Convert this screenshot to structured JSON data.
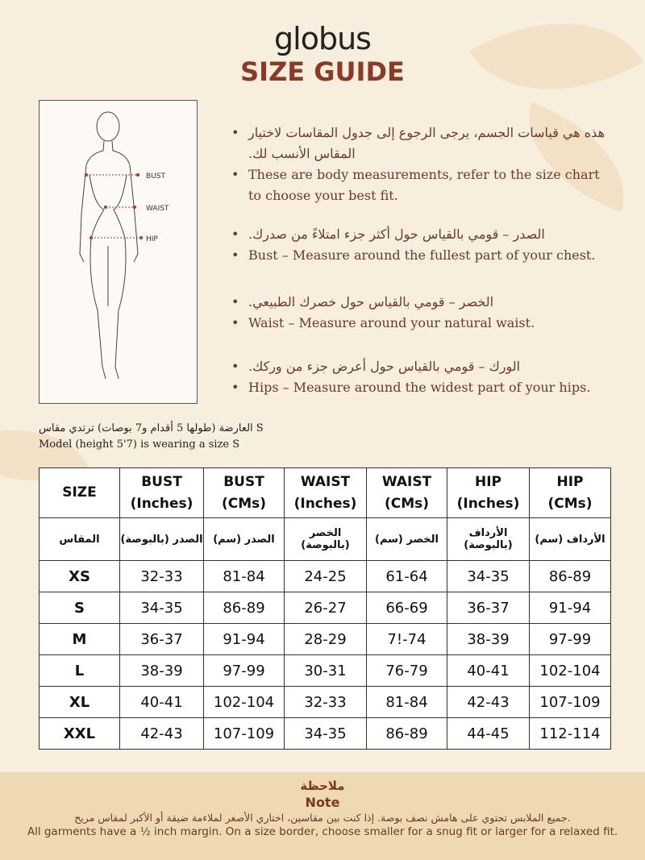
{
  "brand": "globus",
  "title": "SIZE GUIDE",
  "figure": {
    "labels": [
      "BUST",
      "WAIST",
      "HIP"
    ]
  },
  "bullets": [
    {
      "ar": "هذه هي قياسات الجسم، يرجى الرجوع إلى جدول المقاسات لاختيار المقاس الأنسب لك.",
      "en": "These are body measurements, refer to the size chart to choose your best fit."
    },
    {
      "ar": "الصدر – قومي بالقياس حول أكثر جزء امتلاءً من صدرك.",
      "en": "Bust – Measure around the fullest part of your chest."
    },
    {
      "ar": "الخصر – قومي بالقياس حول خصرك الطبيعي.",
      "en": "Waist – Measure around your natural waist."
    },
    {
      "ar": "الورك – قومي بالقياس حول أعرض جزء من وركك.",
      "en": "Hips – Measure around the widest part of your hips."
    }
  ],
  "model": {
    "ar": "العارضة (طولها 5 أقدام و7 بوصات) ترتدي مقاس S",
    "en": "Model (height 5'7) is wearing a size S"
  },
  "table": {
    "headers_en": [
      [
        "SIZE",
        ""
      ],
      [
        "BUST",
        "(Inches)"
      ],
      [
        "BUST",
        "(CMs)"
      ],
      [
        "WAIST",
        "(Inches)"
      ],
      [
        "WAIST",
        "(CMs)"
      ],
      [
        "HIP",
        "(Inches)"
      ],
      [
        "HIP",
        "(CMs)"
      ]
    ],
    "headers_ar": [
      "المقاس",
      "الصدر (بالبوصة)",
      "الصدر (سم)",
      "الخصر (بالبوصة)",
      "الخصر (سم)",
      "الأرداف (بالبوصة)",
      "الأرداف (سم)"
    ],
    "rows": [
      [
        "XS",
        "32-33",
        "81-84",
        "24-25",
        "61-64",
        "34-35",
        "86-89"
      ],
      [
        "S",
        "34-35",
        "86-89",
        "26-27",
        "66-69",
        "36-37",
        "91-94"
      ],
      [
        "M",
        "36-37",
        "91-94",
        "28-29",
        "7!-74",
        "38-39",
        "97-99"
      ],
      [
        "L",
        "38-39",
        "97-99",
        "30-31",
        "76-79",
        "40-41",
        "102-104"
      ],
      [
        "XL",
        "40-41",
        "102-104",
        "32-33",
        "81-84",
        "42-43",
        "107-109"
      ],
      [
        "XXL",
        "42-43",
        "107-109",
        "34-35",
        "86-89",
        "44-45",
        "112-114"
      ]
    ]
  },
  "note": {
    "title_ar": "ملاحظة",
    "title_en": "Note",
    "text_ar": "جميع الملابس تحتوي على هامش نصف بوصة. إذا كنت بين مقاسين، اختاري الأصغر لملاءمة ضيقة أو الأكبر لمقاس مريح.",
    "text_en": "All garments have a ½ inch margin. On a size border, choose smaller for a snug fit or larger for a relaxed fit."
  }
}
